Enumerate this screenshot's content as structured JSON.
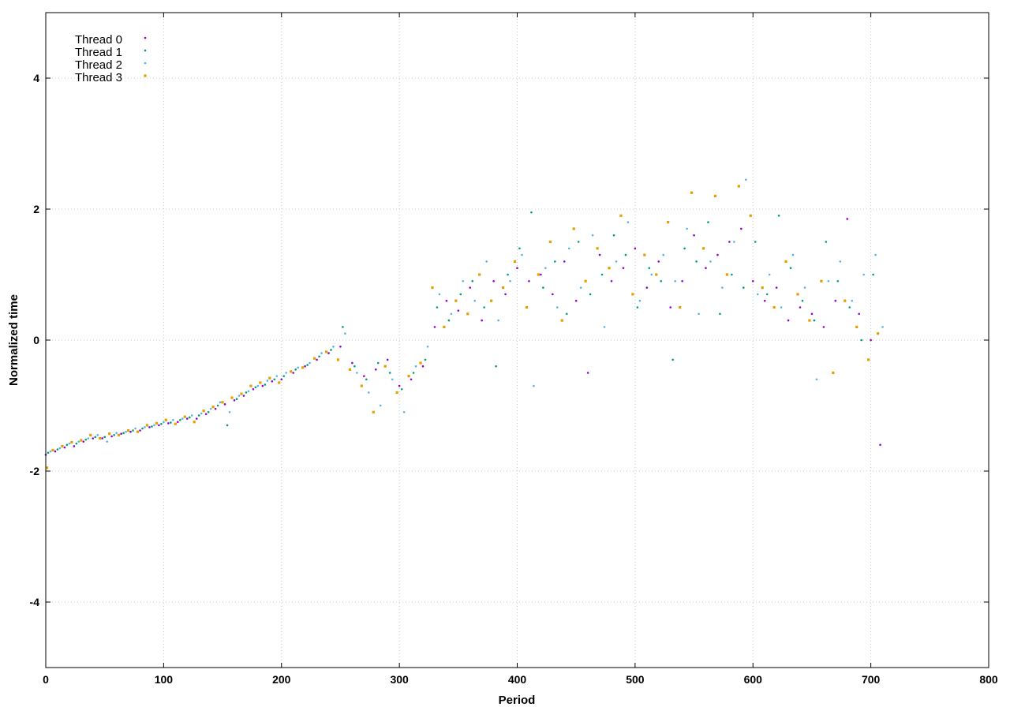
{
  "chart_data": {
    "type": "scatter",
    "title": "",
    "xlabel": "Period",
    "ylabel": "Normalized time",
    "xlim": [
      0,
      800
    ],
    "ylim": [
      -5,
      5
    ],
    "xticks": [
      0,
      100,
      200,
      300,
      400,
      500,
      600,
      700,
      800
    ],
    "yticks": [
      -4,
      -2,
      0,
      2,
      4
    ],
    "grid": true,
    "legend_position": "top-left",
    "series": [
      {
        "name": "Thread 0",
        "color": "#9400d3",
        "marker": "dot",
        "x": [
          0,
          8,
          16,
          24,
          32,
          40,
          48,
          56,
          64,
          72,
          80,
          88,
          96,
          104,
          112,
          120,
          128,
          136,
          144,
          152,
          160,
          168,
          176,
          184,
          192,
          200,
          210,
          220,
          230,
          240,
          250,
          260,
          270,
          280,
          290,
          300,
          310,
          320,
          330,
          340,
          350,
          360,
          370,
          380,
          390,
          400,
          410,
          420,
          430,
          440,
          450,
          460,
          470,
          480,
          490,
          500,
          510,
          520,
          530,
          540,
          550,
          560,
          570,
          580,
          590,
          600,
          610,
          620,
          630,
          640,
          650,
          660,
          670,
          680,
          690,
          700,
          708
        ],
        "y": [
          -1.75,
          -1.7,
          -1.64,
          -1.62,
          -1.55,
          -1.5,
          -1.5,
          -1.47,
          -1.43,
          -1.4,
          -1.38,
          -1.33,
          -1.3,
          -1.27,
          -1.25,
          -1.2,
          -1.2,
          -1.13,
          -1.05,
          -0.98,
          -0.92,
          -0.85,
          -0.75,
          -0.7,
          -0.63,
          -0.6,
          -0.5,
          -0.4,
          -0.3,
          -0.2,
          -0.1,
          -0.35,
          -0.55,
          -0.45,
          -0.3,
          -0.7,
          -0.6,
          -0.4,
          0.2,
          0.6,
          0.45,
          0.8,
          0.3,
          0.9,
          0.7,
          1.1,
          0.9,
          1.0,
          0.7,
          1.2,
          0.6,
          -0.5,
          1.3,
          0.9,
          1.1,
          1.4,
          0.8,
          1.2,
          0.5,
          0.9,
          1.6,
          1.1,
          1.3,
          1.5,
          1.7,
          0.9,
          0.6,
          0.8,
          0.3,
          0.5,
          0.4,
          0.2,
          0.6,
          1.85,
          0.4,
          0.0,
          -1.6
        ]
      },
      {
        "name": "Thread 1",
        "color": "#009e73",
        "marker": "dot",
        "x": [
          2,
          10,
          18,
          26,
          34,
          42,
          50,
          58,
          66,
          74,
          82,
          90,
          98,
          106,
          114,
          122,
          130,
          138,
          146,
          154,
          162,
          170,
          178,
          186,
          194,
          202,
          212,
          222,
          232,
          242,
          252,
          262,
          272,
          282,
          292,
          302,
          312,
          322,
          332,
          342,
          352,
          362,
          372,
          382,
          392,
          402,
          412,
          422,
          432,
          442,
          452,
          462,
          472,
          482,
          492,
          502,
          512,
          522,
          532,
          542,
          552,
          562,
          572,
          582,
          592,
          602,
          612,
          622,
          632,
          642,
          652,
          662,
          672,
          682,
          692,
          702
        ],
        "y": [
          -1.72,
          -1.67,
          -1.6,
          -1.58,
          -1.52,
          -1.48,
          -1.48,
          -1.45,
          -1.42,
          -1.38,
          -1.35,
          -1.32,
          -1.28,
          -1.26,
          -1.22,
          -1.18,
          -1.15,
          -1.1,
          -1.0,
          -1.3,
          -0.9,
          -0.8,
          -0.72,
          -0.68,
          -0.6,
          -0.55,
          -0.45,
          -0.38,
          -0.25,
          -0.15,
          0.2,
          -0.4,
          -0.6,
          -0.35,
          -0.5,
          -0.75,
          -0.5,
          -0.3,
          0.5,
          0.3,
          0.7,
          0.9,
          0.5,
          -0.4,
          1.0,
          1.4,
          1.95,
          0.8,
          1.2,
          0.4,
          1.5,
          0.7,
          1.0,
          1.6,
          1.3,
          0.5,
          1.1,
          0.9,
          -0.3,
          1.4,
          1.2,
          1.8,
          0.4,
          1.0,
          0.8,
          1.5,
          0.7,
          1.9,
          1.1,
          0.6,
          0.3,
          1.5,
          0.9,
          0.5,
          0.0,
          1.0
        ]
      },
      {
        "name": "Thread 2",
        "color": "#56b4e9",
        "marker": "dot",
        "x": [
          4,
          12,
          20,
          28,
          36,
          44,
          52,
          60,
          68,
          76,
          84,
          92,
          100,
          108,
          116,
          124,
          132,
          140,
          148,
          156,
          164,
          172,
          180,
          188,
          196,
          204,
          214,
          224,
          234,
          244,
          254,
          264,
          274,
          284,
          294,
          304,
          314,
          324,
          334,
          344,
          354,
          364,
          374,
          384,
          394,
          404,
          414,
          424,
          434,
          444,
          454,
          464,
          474,
          484,
          494,
          504,
          514,
          524,
          534,
          544,
          554,
          564,
          574,
          584,
          594,
          604,
          614,
          624,
          634,
          644,
          654,
          664,
          674,
          684,
          694,
          704,
          710
        ],
        "y": [
          -1.7,
          -1.65,
          -1.58,
          -1.55,
          -1.5,
          -1.45,
          -1.55,
          -1.42,
          -1.4,
          -1.35,
          -1.33,
          -1.3,
          -1.25,
          -1.22,
          -1.2,
          -1.15,
          -1.12,
          -1.05,
          -0.95,
          -1.1,
          -0.85,
          -0.78,
          -0.7,
          -0.62,
          -0.55,
          -0.5,
          -0.42,
          -0.35,
          -0.2,
          -0.1,
          0.1,
          -0.5,
          -0.8,
          -1.0,
          -0.6,
          -1.1,
          -0.4,
          -0.1,
          0.7,
          0.4,
          0.9,
          0.6,
          1.2,
          0.3,
          0.9,
          1.3,
          -0.7,
          1.1,
          0.5,
          1.4,
          0.8,
          1.6,
          0.2,
          1.2,
          1.8,
          0.6,
          1.0,
          1.3,
          0.9,
          1.7,
          0.4,
          1.2,
          0.8,
          1.5,
          2.45,
          0.7,
          1.0,
          0.5,
          1.3,
          0.8,
          -0.6,
          0.9,
          1.2,
          0.6,
          1.0,
          1.3,
          0.2
        ]
      },
      {
        "name": "Thread 3",
        "color": "#e69f00",
        "marker": "square",
        "x": [
          1,
          6,
          14,
          22,
          30,
          38,
          46,
          54,
          62,
          70,
          78,
          86,
          94,
          102,
          110,
          118,
          126,
          134,
          142,
          150,
          158,
          166,
          174,
          182,
          190,
          198,
          208,
          218,
          228,
          238,
          248,
          258,
          268,
          278,
          288,
          298,
          308,
          318,
          328,
          338,
          348,
          358,
          368,
          378,
          388,
          398,
          408,
          418,
          428,
          438,
          448,
          458,
          468,
          478,
          488,
          498,
          508,
          518,
          528,
          538,
          548,
          558,
          568,
          578,
          588,
          598,
          608,
          618,
          628,
          638,
          648,
          658,
          668,
          678,
          688,
          698,
          706
        ],
        "y": [
          -1.95,
          -1.68,
          -1.62,
          -1.56,
          -1.53,
          -1.45,
          -1.5,
          -1.43,
          -1.45,
          -1.38,
          -1.4,
          -1.3,
          -1.27,
          -1.22,
          -1.28,
          -1.17,
          -1.25,
          -1.08,
          -1.02,
          -0.95,
          -0.88,
          -0.82,
          -0.7,
          -0.65,
          -0.58,
          -0.65,
          -0.48,
          -0.42,
          -0.28,
          -0.18,
          -0.3,
          -0.45,
          -0.7,
          -1.1,
          -0.4,
          -0.8,
          -0.55,
          -0.35,
          0.8,
          0.2,
          0.6,
          0.4,
          1.0,
          0.6,
          0.8,
          1.2,
          0.5,
          1.0,
          1.5,
          0.3,
          1.7,
          0.9,
          1.4,
          1.1,
          1.9,
          0.7,
          1.3,
          1.0,
          1.8,
          0.5,
          2.25,
          1.4,
          2.2,
          1.0,
          2.35,
          1.9,
          0.8,
          0.5,
          1.2,
          0.7,
          0.3,
          0.9,
          -0.5,
          0.6,
          0.2,
          -0.3,
          0.1
        ]
      }
    ]
  }
}
